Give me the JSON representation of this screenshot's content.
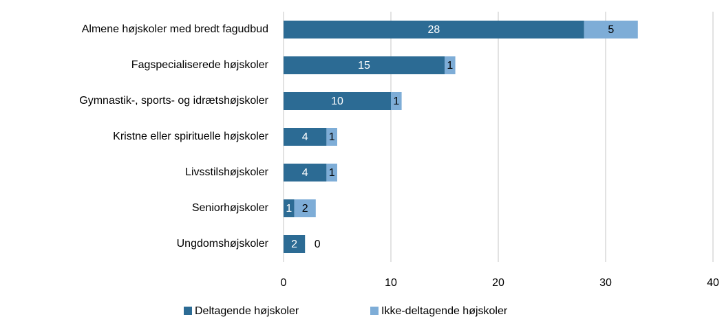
{
  "chart_data": {
    "type": "bar",
    "orientation": "horizontal",
    "stacked": true,
    "categories": [
      "Almene højskoler med bredt fagudbud",
      "Fagspecialiserede højskoler",
      "Gymnastik-, sports- og idrætshøjskoler",
      "Kristne eller spirituelle højskoler",
      "Livsstilshøjskoler",
      "Seniorhøjskoler",
      "Ungdomshøjskoler"
    ],
    "series": [
      {
        "name": "Deltagende højskoler",
        "color": "#2c6b94",
        "values": [
          28,
          15,
          10,
          4,
          4,
          1,
          2
        ]
      },
      {
        "name": "Ikke-deltagende højskoler",
        "color": "#7eadd7",
        "values": [
          5,
          1,
          1,
          1,
          1,
          2,
          0
        ]
      }
    ],
    "xlim": [
      0,
      40
    ],
    "xticks": [
      0,
      10,
      20,
      30,
      40
    ],
    "grid": true,
    "legend": "bottom"
  }
}
